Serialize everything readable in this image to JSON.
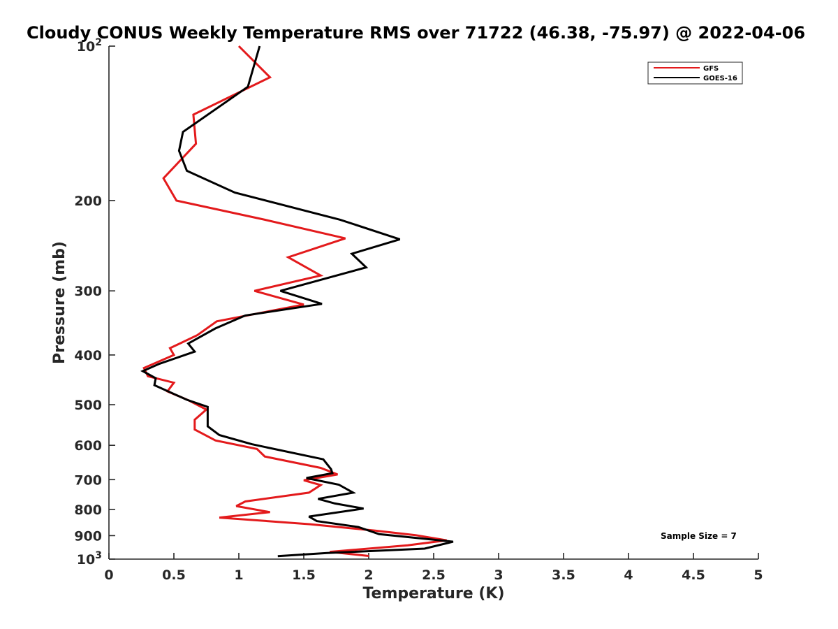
{
  "chart_data": {
    "type": "line",
    "title": "Cloudy CONUS Weekly Temperature RMS over 71722 (46.38, -75.97) @ 2022-04-06",
    "xlabel": "Temperature (K)",
    "ylabel": "Pressure (mb)",
    "xlim": [
      0,
      5
    ],
    "ylim": [
      1000,
      100
    ],
    "y_scale": "log",
    "y_reversed": true,
    "grid": false,
    "legend_position": "top-right",
    "x_ticks": [
      {
        "value": 0,
        "label": "0"
      },
      {
        "value": 0.5,
        "label": "0.5"
      },
      {
        "value": 1,
        "label": "1"
      },
      {
        "value": 1.5,
        "label": "1.5"
      },
      {
        "value": 2,
        "label": "2"
      },
      {
        "value": 2.5,
        "label": "2.5"
      },
      {
        "value": 3,
        "label": "3"
      },
      {
        "value": 3.5,
        "label": "3.5"
      },
      {
        "value": 4,
        "label": "4"
      },
      {
        "value": 4.5,
        "label": "4.5"
      },
      {
        "value": 5,
        "label": "5"
      }
    ],
    "y_ticks": [
      {
        "value": 100,
        "base": "10",
        "exp": "2"
      },
      {
        "value": 200,
        "label": "200"
      },
      {
        "value": 300,
        "label": "300"
      },
      {
        "value": 400,
        "label": "400"
      },
      {
        "value": 500,
        "label": "500"
      },
      {
        "value": 600,
        "label": "600"
      },
      {
        "value": 700,
        "label": "700"
      },
      {
        "value": 800,
        "label": "800"
      },
      {
        "value": 900,
        "label": "900"
      },
      {
        "value": 1000,
        "base": "10",
        "exp": "3"
      }
    ],
    "series": [
      {
        "name": "GFS",
        "color": "#e31a1c",
        "points": [
          [
            1.0,
            100
          ],
          [
            1.24,
            115
          ],
          [
            0.65,
            136
          ],
          [
            0.67,
            155
          ],
          [
            0.42,
            181
          ],
          [
            0.52,
            200
          ],
          [
            1.2,
            218
          ],
          [
            1.82,
            237
          ],
          [
            1.38,
            258
          ],
          [
            1.63,
            280
          ],
          [
            1.12,
            300
          ],
          [
            1.5,
            319
          ],
          [
            0.83,
            344
          ],
          [
            0.68,
            366
          ],
          [
            0.47,
            388
          ],
          [
            0.5,
            400
          ],
          [
            0.27,
            424
          ],
          [
            0.3,
            440
          ],
          [
            0.5,
            453
          ],
          [
            0.45,
            471
          ],
          [
            0.61,
            490
          ],
          [
            0.75,
            511
          ],
          [
            0.66,
            535
          ],
          [
            0.66,
            559
          ],
          [
            0.82,
            587
          ],
          [
            1.14,
            610
          ],
          [
            1.2,
            631
          ],
          [
            1.63,
            664
          ],
          [
            1.76,
            684
          ],
          [
            1.5,
            702
          ],
          [
            1.63,
            717
          ],
          [
            1.54,
            742
          ],
          [
            1.05,
            772
          ],
          [
            0.98,
            788
          ],
          [
            1.24,
            810
          ],
          [
            0.85,
            830
          ],
          [
            1.55,
            855
          ],
          [
            2.05,
            880
          ],
          [
            2.36,
            898
          ],
          [
            2.6,
            919
          ],
          [
            2.3,
            940
          ],
          [
            1.7,
            968
          ],
          [
            2.0,
            986
          ]
        ]
      },
      {
        "name": "GOES-16",
        "color": "#000000",
        "points": [
          [
            1.16,
            100
          ],
          [
            1.07,
            120
          ],
          [
            0.57,
            147
          ],
          [
            0.54,
            160
          ],
          [
            0.6,
            175
          ],
          [
            0.97,
            193
          ],
          [
            1.78,
            218
          ],
          [
            2.24,
            238
          ],
          [
            1.87,
            254
          ],
          [
            1.98,
            270
          ],
          [
            1.32,
            300
          ],
          [
            1.64,
            318
          ],
          [
            1.05,
            335
          ],
          [
            0.82,
            355
          ],
          [
            0.61,
            380
          ],
          [
            0.66,
            394
          ],
          [
            0.39,
            416
          ],
          [
            0.26,
            430
          ],
          [
            0.36,
            444
          ],
          [
            0.35,
            458
          ],
          [
            0.6,
            489
          ],
          [
            0.76,
            505
          ],
          [
            0.76,
            551
          ],
          [
            0.85,
            573
          ],
          [
            1.1,
            597
          ],
          [
            1.65,
            639
          ],
          [
            1.71,
            668
          ],
          [
            1.72,
            680
          ],
          [
            1.52,
            695
          ],
          [
            1.77,
            716
          ],
          [
            1.88,
            742
          ],
          [
            1.61,
            763
          ],
          [
            1.74,
            779
          ],
          [
            1.96,
            797
          ],
          [
            1.54,
            826
          ],
          [
            1.6,
            843
          ],
          [
            1.92,
            866
          ],
          [
            2.08,
            894
          ],
          [
            2.65,
            925
          ],
          [
            2.43,
            954
          ],
          [
            1.68,
            973
          ],
          [
            1.3,
            987
          ]
        ]
      }
    ],
    "annotation": "Sample Size = 7"
  }
}
